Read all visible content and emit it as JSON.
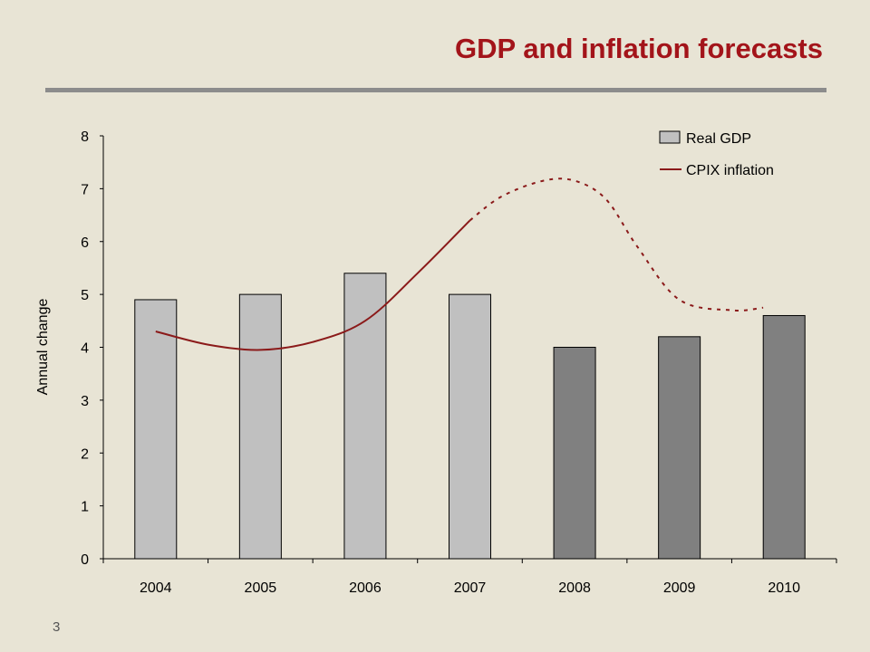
{
  "slide": {
    "title": "GDP and inflation forecasts",
    "page_number": "3"
  },
  "colors": {
    "background": "#e8e4d5",
    "title": "#a3141a",
    "rule": "#8c8c8c",
    "bar_actual": "#c0c0c0",
    "bar_forecast": "#808080",
    "inflation_line": "#8b1a1a"
  },
  "chart_data": {
    "type": "bar",
    "title": "",
    "xlabel": "",
    "ylabel": "Annual change",
    "ylim": [
      0,
      8
    ],
    "yticks": [
      0,
      1,
      2,
      3,
      4,
      5,
      6,
      7,
      8
    ],
    "categories": [
      "2004",
      "2005",
      "2006",
      "2007",
      "2008",
      "2009",
      "2010"
    ],
    "grid": false,
    "legend_position": "top-right",
    "series": [
      {
        "name": "Real GDP",
        "type": "bar",
        "values": [
          4.9,
          5.0,
          5.4,
          5.0,
          4.0,
          4.2,
          4.6
        ],
        "forecast_from_index": 4
      },
      {
        "name": "CPIX inflation",
        "type": "line",
        "smooth": true,
        "x": [
          2004,
          2004.5,
          2005,
          2005.5,
          2006,
          2006.5,
          2007,
          2007.3,
          2007.7,
          2008,
          2008.3,
          2008.6,
          2009,
          2009.5,
          2009.8
        ],
        "values": [
          4.3,
          4.05,
          3.95,
          4.1,
          4.5,
          5.4,
          6.4,
          6.85,
          7.15,
          7.15,
          6.8,
          5.9,
          4.9,
          4.7,
          4.75
        ],
        "dashed_from_x": 2007
      }
    ]
  }
}
